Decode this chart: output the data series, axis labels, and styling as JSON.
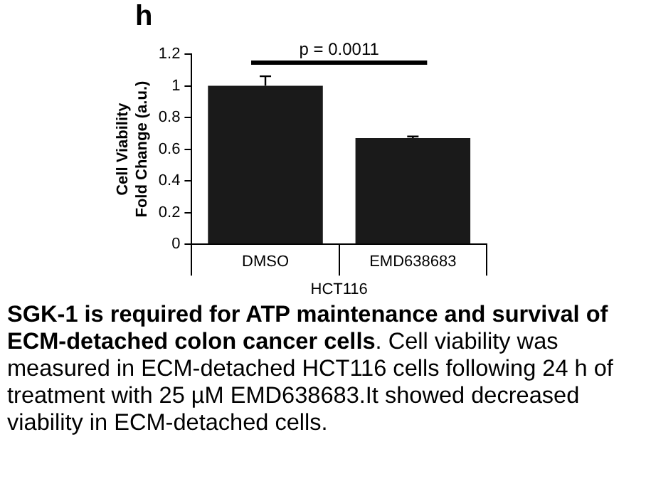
{
  "chart_data": {
    "type": "bar",
    "ylabel": "Cell Viability\nFold Change (a.u.)",
    "xlabel": "HCT116",
    "categories": [
      "DMSO",
      "EMD638683"
    ],
    "values": [
      1.0,
      0.67
    ],
    "errors": [
      0.06,
      0.01
    ],
    "color": "#1a1a1a",
    "ylim": [
      0,
      1.2
    ],
    "yticks": [
      0,
      0.2,
      0.4,
      0.6,
      0.8,
      1,
      1.2
    ],
    "grid": false,
    "legend": false,
    "annotations": [
      "h",
      "p = 0.0011",
      "SGK-1 is required for ATP maintenance and survival of ECM-detached colon cancer cells",
      ". Cell viability was measured in ECM-detached HCT116 cells following 24 h of treatment with 25 µM EMD638683.It showed decreased viability in ECM-detached cells."
    ]
  }
}
